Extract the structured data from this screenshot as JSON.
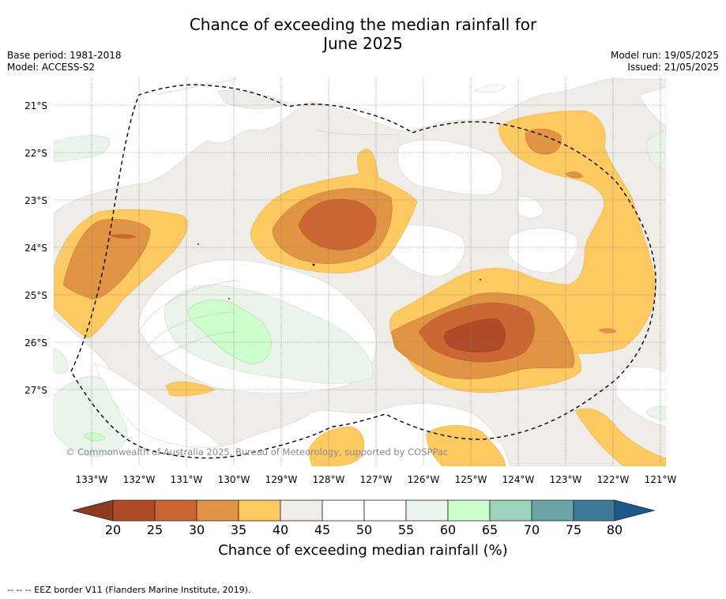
{
  "title_line1": "Chance of exceeding the median rainfall for",
  "title_line2": "June 2025",
  "meta": {
    "base_period": "Base period: 1981-2018",
    "model": "Model: ACCESS-S2",
    "model_run": "Model run: 19/05/2025",
    "issued": "Issued: 21/05/2025"
  },
  "copyright": "© Commonwealth of Australia 2025, Bureau of Meteorology, supported by COSPPac",
  "footer": "--  --  -- EEZ border V11 (Flanders Marine Institute, 2019).",
  "colorbar": {
    "label": "Chance of exceeding median rainfall (%)",
    "ticks": [
      "20",
      "25",
      "30",
      "35",
      "40",
      "45",
      "50",
      "55",
      "60",
      "65",
      "70",
      "75",
      "80"
    ],
    "colors": {
      "lt20": "#8e3a1f",
      "c20": "#b04a28",
      "c25": "#cc6633",
      "c30": "#e09444",
      "c35": "#fdca62",
      "c40": "#f0ede8",
      "c45": "#ffffff",
      "c50": "#ffffff",
      "c55": "#eaf4ea",
      "c60": "#ccffcc",
      "c65": "#9dd3bb",
      "c70": "#6aa4a4",
      "c75": "#3d7897",
      "gt80": "#1a5a8c"
    }
  },
  "axes": {
    "lon_labels": [
      "133°W",
      "132°W",
      "131°W",
      "130°W",
      "129°W",
      "128°W",
      "127°W",
      "126°W",
      "125°W",
      "124°W",
      "123°W",
      "122°W",
      "121°W"
    ],
    "lat_labels": [
      "21°S",
      "22°S",
      "23°S",
      "24°S",
      "25°S",
      "26°S",
      "27°S"
    ]
  }
}
